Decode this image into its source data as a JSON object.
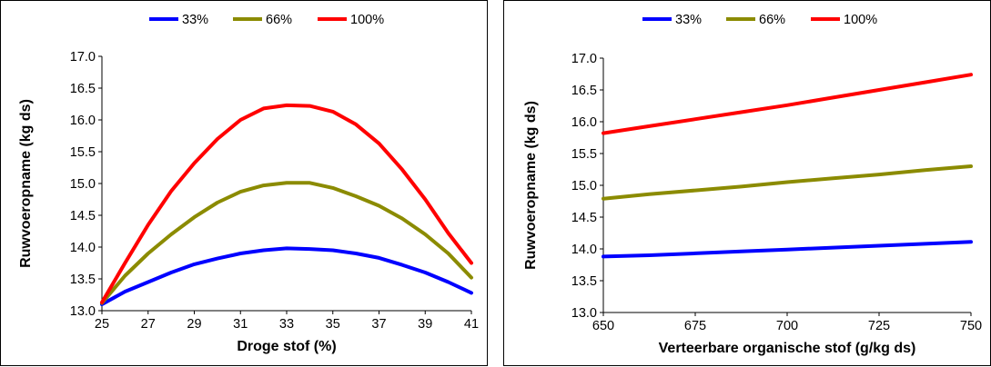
{
  "chart_data": [
    {
      "type": "line",
      "title": "",
      "xlabel": "Droge stof (%)",
      "ylabel": "Ruwvoeropname (kg ds)",
      "xlim": [
        25,
        41
      ],
      "ylim": [
        13.0,
        17.0
      ],
      "x_ticks": [
        "25",
        "27",
        "29",
        "31",
        "33",
        "35",
        "37",
        "39",
        "41"
      ],
      "y_ticks": [
        "13.0",
        "13.5",
        "14.0",
        "14.5",
        "15.0",
        "15.5",
        "16.0",
        "16.5",
        "17.0"
      ],
      "grid": false,
      "legend": "top",
      "x": [
        25,
        26,
        27,
        28,
        29,
        30,
        31,
        32,
        33,
        34,
        35,
        36,
        37,
        38,
        39,
        40,
        41
      ],
      "series": [
        {
          "name": "33%",
          "color": "#0000ff",
          "values": [
            13.1,
            13.3,
            13.45,
            13.6,
            13.73,
            13.82,
            13.9,
            13.95,
            13.98,
            13.97,
            13.95,
            13.9,
            13.83,
            13.72,
            13.6,
            13.45,
            13.28
          ]
        },
        {
          "name": "66%",
          "color": "#8b8b00",
          "values": [
            13.12,
            13.55,
            13.9,
            14.2,
            14.47,
            14.7,
            14.87,
            14.97,
            15.01,
            15.01,
            14.93,
            14.8,
            14.65,
            14.45,
            14.2,
            13.9,
            13.52
          ]
        },
        {
          "name": "100%",
          "color": "#ff0000",
          "values": [
            13.13,
            13.75,
            14.35,
            14.88,
            15.32,
            15.7,
            16.0,
            16.18,
            16.23,
            16.22,
            16.13,
            15.93,
            15.63,
            15.22,
            14.75,
            14.22,
            13.75
          ]
        }
      ]
    },
    {
      "type": "line",
      "title": "",
      "xlabel": "Verteerbare organische stof (g/kg ds)",
      "ylabel": "Ruwvoeropname (kg ds)",
      "xlim": [
        650,
        750
      ],
      "ylim": [
        13.0,
        17.0
      ],
      "x_ticks": [
        "650",
        "675",
        "700",
        "725",
        "750"
      ],
      "y_ticks": [
        "13.0",
        "13.5",
        "14.0",
        "14.5",
        "15.0",
        "15.5",
        "16.0",
        "16.5",
        "17.0"
      ],
      "grid": false,
      "legend": "top",
      "x": [
        650,
        662.5,
        675,
        687.5,
        700,
        712.5,
        725,
        737.5,
        750
      ],
      "series": [
        {
          "name": "33%",
          "color": "#0000ff",
          "values": [
            13.88,
            13.9,
            13.93,
            13.96,
            13.99,
            14.02,
            14.05,
            14.08,
            14.11
          ]
        },
        {
          "name": "66%",
          "color": "#8b8b00",
          "values": [
            14.79,
            14.86,
            14.92,
            14.98,
            15.05,
            15.11,
            15.17,
            15.24,
            15.3
          ]
        },
        {
          "name": "100%",
          "color": "#ff0000",
          "values": [
            15.82,
            15.93,
            16.04,
            16.15,
            16.26,
            16.38,
            16.5,
            16.62,
            16.74
          ]
        }
      ]
    }
  ]
}
